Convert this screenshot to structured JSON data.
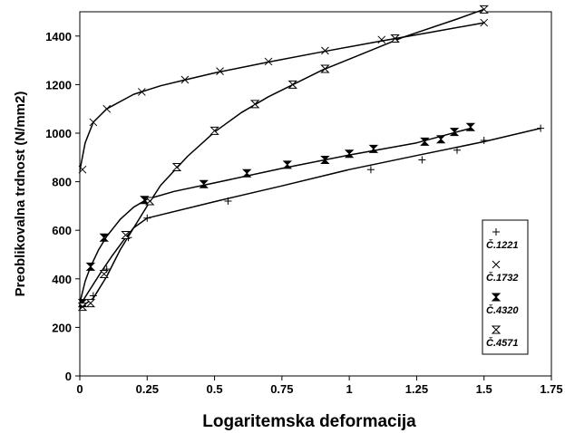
{
  "chart_data": {
    "type": "line",
    "xlabel": "Logaritemska deformacija",
    "ylabel": "Preoblikovalna trdnost (N/mm2)",
    "xlim": [
      0,
      1.75
    ],
    "ylim": [
      0,
      1500
    ],
    "x_ticks": [
      0,
      0.25,
      0.5,
      0.75,
      1,
      1.25,
      1.5,
      1.75
    ],
    "x_tick_labels": [
      "0",
      "0.25",
      "0.5",
      "0.75",
      "1",
      "1.25",
      "1.5",
      "1.75"
    ],
    "y_ticks": [
      0,
      200,
      400,
      600,
      800,
      1000,
      1200,
      1400
    ],
    "y_tick_labels": [
      "0",
      "200",
      "400",
      "600",
      "800",
      "1000",
      "1200",
      "1400"
    ],
    "grid": false,
    "legend_position": "bottom-right",
    "series": [
      {
        "name": "Č.1221",
        "marker": "plus",
        "points": [
          [
            0.01,
            290
          ],
          [
            0.05,
            330
          ],
          [
            0.1,
            440
          ],
          [
            0.18,
            570
          ],
          [
            0.25,
            650
          ],
          [
            0.55,
            720
          ],
          [
            1.08,
            850
          ],
          [
            1.27,
            890
          ],
          [
            1.4,
            930
          ],
          [
            1.5,
            970
          ],
          [
            1.71,
            1020
          ]
        ],
        "curve": [
          [
            0,
            290
          ],
          [
            0.04,
            360
          ],
          [
            0.08,
            430
          ],
          [
            0.12,
            495
          ],
          [
            0.16,
            555
          ],
          [
            0.2,
            610
          ],
          [
            0.25,
            650
          ],
          [
            0.5,
            718
          ],
          [
            0.75,
            783
          ],
          [
            1.0,
            850
          ],
          [
            1.25,
            908
          ],
          [
            1.5,
            965
          ],
          [
            1.71,
            1020
          ]
        ]
      },
      {
        "name": "Č.1732",
        "marker": "x",
        "points": [
          [
            0.01,
            850
          ],
          [
            0.05,
            1045
          ],
          [
            0.1,
            1100
          ],
          [
            0.23,
            1170
          ],
          [
            0.39,
            1220
          ],
          [
            0.52,
            1255
          ],
          [
            0.7,
            1295
          ],
          [
            0.91,
            1340
          ],
          [
            1.12,
            1385
          ],
          [
            1.17,
            1390
          ],
          [
            1.5,
            1455
          ]
        ],
        "curve": [
          [
            0,
            845
          ],
          [
            0.02,
            960
          ],
          [
            0.05,
            1045
          ],
          [
            0.1,
            1100
          ],
          [
            0.2,
            1160
          ],
          [
            0.3,
            1195
          ],
          [
            0.4,
            1222
          ],
          [
            0.5,
            1248
          ],
          [
            0.7,
            1293
          ],
          [
            0.9,
            1335
          ],
          [
            1.1,
            1376
          ],
          [
            1.3,
            1415
          ],
          [
            1.5,
            1455
          ]
        ]
      },
      {
        "name": "Č.4320",
        "marker": "bowtie",
        "points": [
          [
            0.01,
            300
          ],
          [
            0.04,
            450
          ],
          [
            0.09,
            570
          ],
          [
            0.24,
            725
          ],
          [
            0.46,
            790
          ],
          [
            0.62,
            835
          ],
          [
            0.77,
            870
          ],
          [
            0.91,
            890
          ],
          [
            1.0,
            915
          ],
          [
            1.09,
            935
          ],
          [
            1.28,
            965
          ],
          [
            1.34,
            975
          ],
          [
            1.39,
            1005
          ],
          [
            1.45,
            1025
          ]
        ],
        "curve": [
          [
            0,
            300
          ],
          [
            0.02,
            390
          ],
          [
            0.04,
            450
          ],
          [
            0.07,
            520
          ],
          [
            0.1,
            575
          ],
          [
            0.15,
            645
          ],
          [
            0.2,
            695
          ],
          [
            0.25,
            728
          ],
          [
            0.35,
            760
          ],
          [
            0.5,
            795
          ],
          [
            0.75,
            855
          ],
          [
            1.0,
            910
          ],
          [
            1.25,
            960
          ],
          [
            1.45,
            1020
          ]
        ]
      },
      {
        "name": "Č.4571",
        "marker": "hourglass",
        "points": [
          [
            0.01,
            285
          ],
          [
            0.04,
            300
          ],
          [
            0.09,
            420
          ],
          [
            0.17,
            580
          ],
          [
            0.26,
            720
          ],
          [
            0.36,
            860
          ],
          [
            0.5,
            1010
          ],
          [
            0.65,
            1120
          ],
          [
            0.79,
            1200
          ],
          [
            0.91,
            1265
          ],
          [
            1.17,
            1390
          ],
          [
            1.5,
            1510
          ]
        ],
        "curve": [
          [
            0,
            280
          ],
          [
            0.05,
            320
          ],
          [
            0.1,
            410
          ],
          [
            0.15,
            520
          ],
          [
            0.2,
            610
          ],
          [
            0.25,
            700
          ],
          [
            0.3,
            785
          ],
          [
            0.4,
            905
          ],
          [
            0.5,
            1005
          ],
          [
            0.6,
            1085
          ],
          [
            0.7,
            1150
          ],
          [
            0.8,
            1205
          ],
          [
            0.9,
            1260
          ],
          [
            1.0,
            1305
          ],
          [
            1.2,
            1395
          ],
          [
            1.4,
            1470
          ],
          [
            1.5,
            1510
          ]
        ]
      }
    ]
  }
}
